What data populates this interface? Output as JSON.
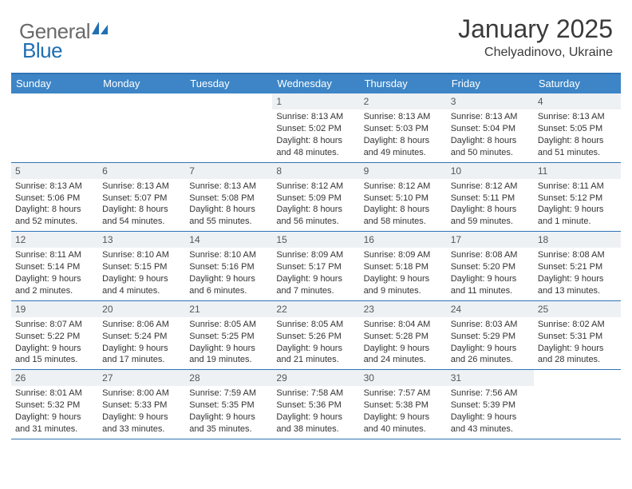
{
  "logo": {
    "text1": "General",
    "text2": "Blue"
  },
  "title": "January 2025",
  "location": "Chelyadinovo, Ukraine",
  "colors": {
    "header_bg": "#3d85c6",
    "header_border": "#2f73b5",
    "daynum_bg": "#eef1f4",
    "text": "#333333",
    "logo_gray": "#6a6a6a",
    "logo_blue": "#1f6fb2"
  },
  "day_labels": [
    "Sunday",
    "Monday",
    "Tuesday",
    "Wednesday",
    "Thursday",
    "Friday",
    "Saturday"
  ],
  "weeks": [
    [
      {
        "n": "",
        "s": "",
        "t": "",
        "d": "",
        "empty": true
      },
      {
        "n": "",
        "s": "",
        "t": "",
        "d": "",
        "empty": true
      },
      {
        "n": "",
        "s": "",
        "t": "",
        "d": "",
        "empty": true
      },
      {
        "n": "1",
        "s": "Sunrise: 8:13 AM",
        "t": "Sunset: 5:02 PM",
        "d": "Daylight: 8 hours and 48 minutes."
      },
      {
        "n": "2",
        "s": "Sunrise: 8:13 AM",
        "t": "Sunset: 5:03 PM",
        "d": "Daylight: 8 hours and 49 minutes."
      },
      {
        "n": "3",
        "s": "Sunrise: 8:13 AM",
        "t": "Sunset: 5:04 PM",
        "d": "Daylight: 8 hours and 50 minutes."
      },
      {
        "n": "4",
        "s": "Sunrise: 8:13 AM",
        "t": "Sunset: 5:05 PM",
        "d": "Daylight: 8 hours and 51 minutes."
      }
    ],
    [
      {
        "n": "5",
        "s": "Sunrise: 8:13 AM",
        "t": "Sunset: 5:06 PM",
        "d": "Daylight: 8 hours and 52 minutes."
      },
      {
        "n": "6",
        "s": "Sunrise: 8:13 AM",
        "t": "Sunset: 5:07 PM",
        "d": "Daylight: 8 hours and 54 minutes."
      },
      {
        "n": "7",
        "s": "Sunrise: 8:13 AM",
        "t": "Sunset: 5:08 PM",
        "d": "Daylight: 8 hours and 55 minutes."
      },
      {
        "n": "8",
        "s": "Sunrise: 8:12 AM",
        "t": "Sunset: 5:09 PM",
        "d": "Daylight: 8 hours and 56 minutes."
      },
      {
        "n": "9",
        "s": "Sunrise: 8:12 AM",
        "t": "Sunset: 5:10 PM",
        "d": "Daylight: 8 hours and 58 minutes."
      },
      {
        "n": "10",
        "s": "Sunrise: 8:12 AM",
        "t": "Sunset: 5:11 PM",
        "d": "Daylight: 8 hours and 59 minutes."
      },
      {
        "n": "11",
        "s": "Sunrise: 8:11 AM",
        "t": "Sunset: 5:12 PM",
        "d": "Daylight: 9 hours and 1 minute."
      }
    ],
    [
      {
        "n": "12",
        "s": "Sunrise: 8:11 AM",
        "t": "Sunset: 5:14 PM",
        "d": "Daylight: 9 hours and 2 minutes."
      },
      {
        "n": "13",
        "s": "Sunrise: 8:10 AM",
        "t": "Sunset: 5:15 PM",
        "d": "Daylight: 9 hours and 4 minutes."
      },
      {
        "n": "14",
        "s": "Sunrise: 8:10 AM",
        "t": "Sunset: 5:16 PM",
        "d": "Daylight: 9 hours and 6 minutes."
      },
      {
        "n": "15",
        "s": "Sunrise: 8:09 AM",
        "t": "Sunset: 5:17 PM",
        "d": "Daylight: 9 hours and 7 minutes."
      },
      {
        "n": "16",
        "s": "Sunrise: 8:09 AM",
        "t": "Sunset: 5:18 PM",
        "d": "Daylight: 9 hours and 9 minutes."
      },
      {
        "n": "17",
        "s": "Sunrise: 8:08 AM",
        "t": "Sunset: 5:20 PM",
        "d": "Daylight: 9 hours and 11 minutes."
      },
      {
        "n": "18",
        "s": "Sunrise: 8:08 AM",
        "t": "Sunset: 5:21 PM",
        "d": "Daylight: 9 hours and 13 minutes."
      }
    ],
    [
      {
        "n": "19",
        "s": "Sunrise: 8:07 AM",
        "t": "Sunset: 5:22 PM",
        "d": "Daylight: 9 hours and 15 minutes."
      },
      {
        "n": "20",
        "s": "Sunrise: 8:06 AM",
        "t": "Sunset: 5:24 PM",
        "d": "Daylight: 9 hours and 17 minutes."
      },
      {
        "n": "21",
        "s": "Sunrise: 8:05 AM",
        "t": "Sunset: 5:25 PM",
        "d": "Daylight: 9 hours and 19 minutes."
      },
      {
        "n": "22",
        "s": "Sunrise: 8:05 AM",
        "t": "Sunset: 5:26 PM",
        "d": "Daylight: 9 hours and 21 minutes."
      },
      {
        "n": "23",
        "s": "Sunrise: 8:04 AM",
        "t": "Sunset: 5:28 PM",
        "d": "Daylight: 9 hours and 24 minutes."
      },
      {
        "n": "24",
        "s": "Sunrise: 8:03 AM",
        "t": "Sunset: 5:29 PM",
        "d": "Daylight: 9 hours and 26 minutes."
      },
      {
        "n": "25",
        "s": "Sunrise: 8:02 AM",
        "t": "Sunset: 5:31 PM",
        "d": "Daylight: 9 hours and 28 minutes."
      }
    ],
    [
      {
        "n": "26",
        "s": "Sunrise: 8:01 AM",
        "t": "Sunset: 5:32 PM",
        "d": "Daylight: 9 hours and 31 minutes."
      },
      {
        "n": "27",
        "s": "Sunrise: 8:00 AM",
        "t": "Sunset: 5:33 PM",
        "d": "Daylight: 9 hours and 33 minutes."
      },
      {
        "n": "28",
        "s": "Sunrise: 7:59 AM",
        "t": "Sunset: 5:35 PM",
        "d": "Daylight: 9 hours and 35 minutes."
      },
      {
        "n": "29",
        "s": "Sunrise: 7:58 AM",
        "t": "Sunset: 5:36 PM",
        "d": "Daylight: 9 hours and 38 minutes."
      },
      {
        "n": "30",
        "s": "Sunrise: 7:57 AM",
        "t": "Sunset: 5:38 PM",
        "d": "Daylight: 9 hours and 40 minutes."
      },
      {
        "n": "31",
        "s": "Sunrise: 7:56 AM",
        "t": "Sunset: 5:39 PM",
        "d": "Daylight: 9 hours and 43 minutes."
      },
      {
        "n": "",
        "s": "",
        "t": "",
        "d": "",
        "empty": true
      }
    ]
  ]
}
